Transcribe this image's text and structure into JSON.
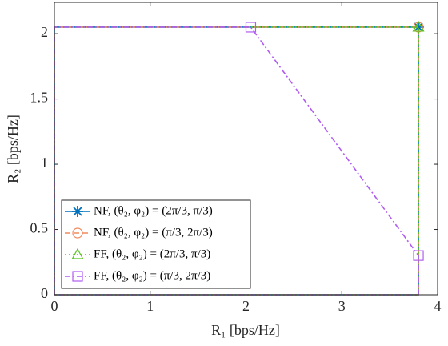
{
  "chart_data": {
    "type": "line",
    "xlabel": "R₁ [bps/Hz]",
    "ylabel": "R₂ [bps/Hz]",
    "xlim": [
      0,
      4
    ],
    "xticks": [
      0,
      1,
      2,
      3,
      4
    ],
    "ylim": [
      0,
      2.24
    ],
    "yticks": [
      0,
      0.5,
      1,
      1.5,
      2
    ],
    "legend": "bottom-left",
    "series": [
      {
        "name": "NF, (θ₂, φ₂) = (2π/3, π/3)",
        "color": "#0072bd",
        "dash": "solid",
        "marker": "star",
        "x": [
          0,
          0,
          3.8,
          3.8,
          0
        ],
        "values": [
          0,
          2.05,
          2.05,
          0,
          0
        ]
      },
      {
        "name": "NF, (θ₂, φ₂) = (π/3, 2π/3)",
        "color": "#f08a5d",
        "dash": "dashed",
        "marker": "circle",
        "x": [
          0,
          0,
          3.8,
          3.8,
          0
        ],
        "values": [
          0,
          2.05,
          2.05,
          0,
          0
        ]
      },
      {
        "name": "FF, (θ₂, φ₂) = (2π/3, π/3)",
        "color": "#55c41a",
        "dash": "dotted",
        "marker": "triangle",
        "x": [
          0,
          0,
          3.8,
          3.8,
          0
        ],
        "values": [
          0,
          2.05,
          2.05,
          0,
          0
        ]
      },
      {
        "name": "FF, (θ₂, φ₂) = (π/3, 2π/3)",
        "color": "#b05cf0",
        "dash": "dashdot",
        "marker": "square",
        "x": [
          0,
          0,
          2.05,
          3.8,
          3.8,
          0
        ],
        "values": [
          0,
          2.05,
          2.05,
          0.3,
          0,
          0
        ]
      }
    ]
  }
}
